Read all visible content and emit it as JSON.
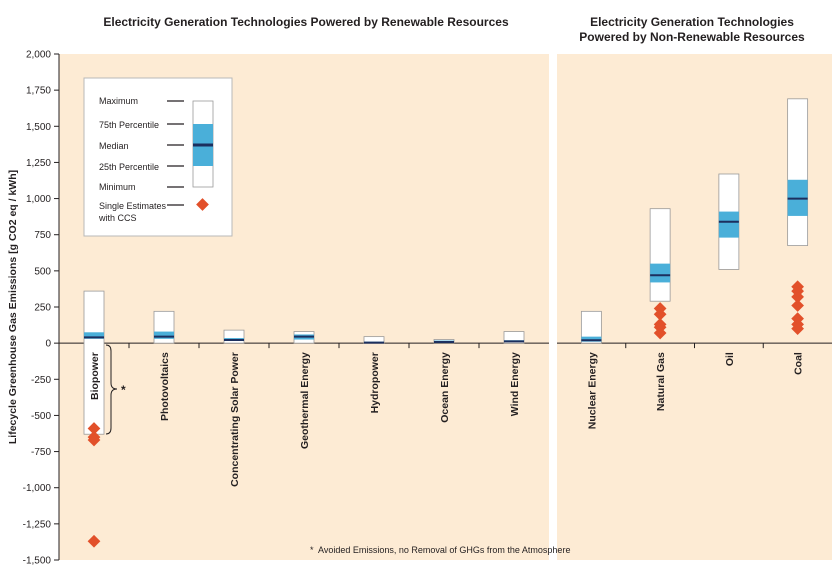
{
  "chart_data": {
    "type": "boxplot",
    "ylabel": "Lifecycle Greenhouse Gas Emissions [g CO2 eq / kWh]",
    "ylim": [
      -1500,
      2000
    ],
    "yticks": [
      2000,
      1750,
      1500,
      1250,
      1000,
      750,
      500,
      250,
      0,
      -250,
      -500,
      -750,
      -1000,
      -1250,
      -1500
    ],
    "ytick_labels": [
      "2,000",
      "1,750",
      "1,500",
      "1,250",
      "1,000",
      "750",
      "500",
      "250",
      "0",
      "-250",
      "-500",
      "-750",
      "-1,000",
      "-1,250",
      "-1,500"
    ],
    "panels": [
      {
        "title": "Electricity Generation Technologies Powered by Renewable Resources",
        "categories": [
          {
            "name": "Biopower",
            "min": -630,
            "q1": 30,
            "median": 40,
            "q3": 75,
            "max": 360,
            "ccs": [
              -590,
              -650,
              -670,
              -1370
            ]
          },
          {
            "name": "Photovoltaics",
            "min": 0,
            "q1": 30,
            "median": 45,
            "q3": 80,
            "max": 220,
            "ccs": []
          },
          {
            "name": "Concentrating Solar Power",
            "min": 0,
            "q1": 15,
            "median": 22,
            "q3": 35,
            "max": 90,
            "ccs": []
          },
          {
            "name": "Geothermal Energy",
            "min": 0,
            "q1": 25,
            "median": 45,
            "q3": 60,
            "max": 80,
            "ccs": []
          },
          {
            "name": "Hydropower",
            "min": 0,
            "q1": 2,
            "median": 4,
            "q3": 10,
            "max": 45,
            "ccs": []
          },
          {
            "name": "Ocean Energy",
            "min": 2,
            "q1": 6,
            "median": 8,
            "q3": 18,
            "max": 25,
            "ccs": []
          },
          {
            "name": "Wind Energy",
            "min": 0,
            "q1": 10,
            "median": 12,
            "q3": 20,
            "max": 80,
            "ccs": []
          }
        ]
      },
      {
        "title": "Electricity Generation Technologies Powered by Non-Renewable Resources",
        "title_lines": [
          "Electricity Generation Technologies",
          "Powered by Non-Renewable Resources"
        ],
        "categories": [
          {
            "name": "Nuclear Energy",
            "min": 0,
            "q1": 10,
            "median": 20,
            "q3": 45,
            "max": 220,
            "ccs": []
          },
          {
            "name": "Natural Gas",
            "min": 290,
            "q1": 420,
            "median": 470,
            "q3": 550,
            "max": 930,
            "ccs": [
              70,
              110,
              130,
              200,
              240
            ]
          },
          {
            "name": "Oil",
            "min": 510,
            "q1": 730,
            "median": 840,
            "q3": 910,
            "max": 1170,
            "ccs": []
          },
          {
            "name": "Coal",
            "min": 675,
            "q1": 880,
            "median": 1000,
            "q3": 1130,
            "max": 1690,
            "ccs": [
              100,
              130,
              170,
              260,
              320,
              360,
              390
            ]
          }
        ]
      }
    ],
    "legend": {
      "placement": "top-left",
      "items": [
        "Maximum",
        "75th Percentile",
        "Median",
        "25th Percentile",
        "Minimum",
        "Single Estimates with CCS"
      ]
    },
    "annotation": {
      "marker": "*",
      "text": "Avoided Emissions, no Removal of GHGs from the Atmosphere"
    },
    "colors": {
      "background": "#fdebd4",
      "iqr": "#4aafd9",
      "median": "#1c2f5e",
      "ccs": "#e2502a"
    }
  }
}
